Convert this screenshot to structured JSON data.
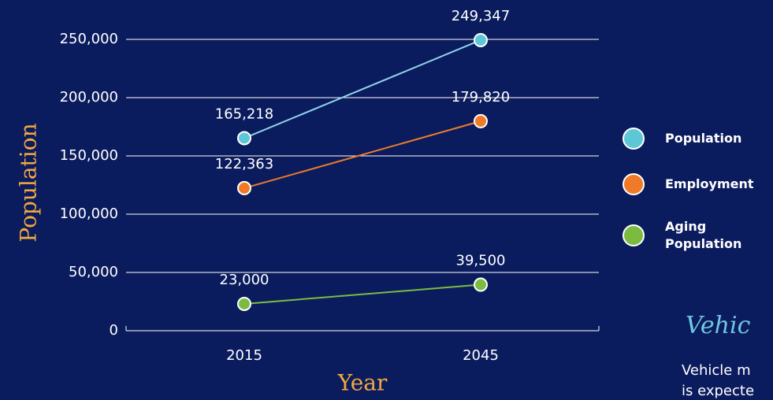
{
  "chart_data": {
    "type": "line",
    "x_label": "Year",
    "y_label": "Population",
    "categories": [
      "2015",
      "2045"
    ],
    "series": [
      {
        "name": "Population",
        "color": "#5ec7d6",
        "line_color": "#8fd3ea",
        "values": [
          165218,
          249347
        ],
        "value_labels": [
          "165,218",
          "249,347"
        ]
      },
      {
        "name": "Employment",
        "color": "#f07a28",
        "line_color": "#f07a28",
        "values": [
          122363,
          179820
        ],
        "value_labels": [
          "122,363",
          "179,820"
        ]
      },
      {
        "name": "Aging Population",
        "color": "#7cbb41",
        "line_color": "#7cbb41",
        "values": [
          23000,
          39500
        ],
        "value_labels": [
          "23,000",
          "39,500"
        ]
      }
    ],
    "ylim": [
      0,
      250000
    ],
    "yticks": [
      0,
      {
        "value": 50000,
        "label": "50,000"
      },
      {
        "value": 100000,
        "label": "100,000"
      },
      {
        "value": 150000,
        "label": "150,000"
      },
      {
        "value": 200000,
        "label": "200,000"
      },
      {
        "value": 250000,
        "label": "250,000"
      }
    ],
    "grid": true
  },
  "side_text": {
    "heading": "Vehic",
    "lines": [
      "Vehicle m",
      "is expecte"
    ]
  }
}
